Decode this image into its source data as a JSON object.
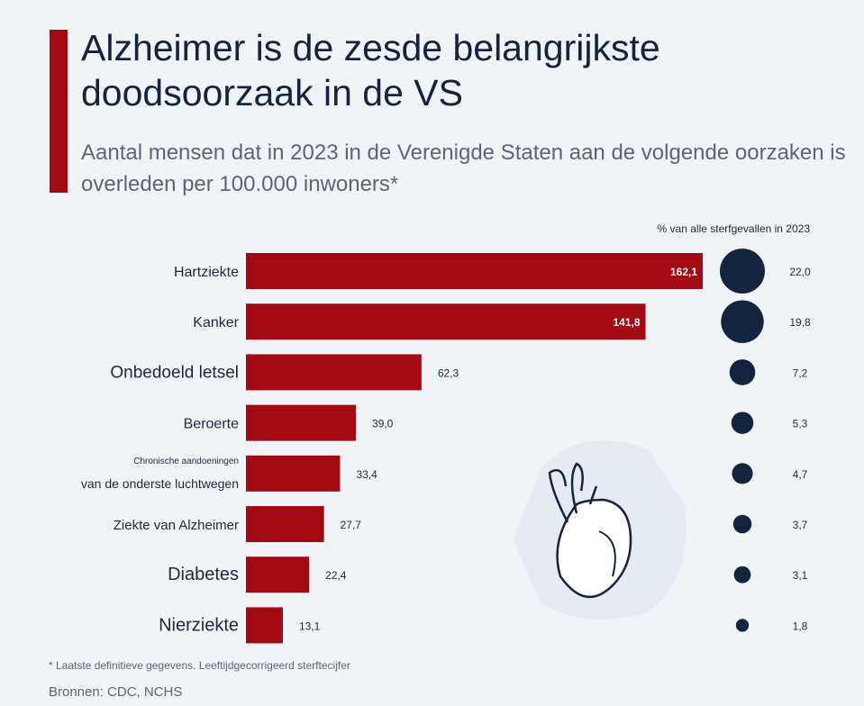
{
  "title": "Alzheimer is de zesde belangrijkste doodsoorzaak in de VS",
  "subtitle": "Aantal mensen dat in 2023 in de Verenigde Staten aan de volgende oorzaken is overleden per 100.000 inwoners*",
  "footnote": "* Laatste definitieve gegevens. Leeftijdgecorrigeerd sterftecijfer",
  "source": "Bronnen: CDC, NCHS",
  "colors": {
    "bar": "#a10a12",
    "circle": "#13243f",
    "accent": "#a10a12"
  },
  "chart_data": {
    "type": "bar",
    "orientation": "horizontal",
    "title": "Aantal mensen dat in 2023 in de Verenigde Staten aan de volgende oorzaken is overleden per 100.000 inwoners*",
    "categories": [
      "Hartziekte",
      "Kanker",
      "Onbedoeld letsel",
      "Beroerte",
      "Chronische aandoeningen van de onderste luchtwegen",
      "Ziekte van Alzheimer",
      "Diabetes",
      "Nierziekte"
    ],
    "category_lines": [
      [
        "Hartziekte"
      ],
      [
        "Kanker"
      ],
      [
        "Onbedoeld letsel"
      ],
      [
        "Beroerte"
      ],
      [
        "Chronische aandoeningen",
        "van de onderste luchtwegen"
      ],
      [
        "Ziekte van Alzheimer"
      ],
      [
        "Diabetes"
      ],
      [
        "Nierziekte"
      ]
    ],
    "series": [
      {
        "name": "Sterfte per 100.000 inwoners",
        "values": [
          162.1,
          141.8,
          62.3,
          39.0,
          33.4,
          27.7,
          22.4,
          13.1
        ],
        "labels": [
          "162,1",
          "141,8",
          "62,3",
          "39,0",
          "33,4",
          "27,7",
          "22,4",
          "13,1"
        ]
      },
      {
        "name": "% van alle sterfgevallen in 2023",
        "values": [
          22.0,
          19.8,
          7.2,
          5.3,
          4.7,
          3.7,
          3.1,
          1.8
        ],
        "labels": [
          "22,0",
          "19,8",
          "7,2",
          "5,3",
          "4,7",
          "3,7",
          "3,1",
          "1,8"
        ]
      }
    ],
    "circle_header": "% van alle sterfgevallen in 2023",
    "xlim": [
      0,
      162.1
    ],
    "grid": false
  }
}
